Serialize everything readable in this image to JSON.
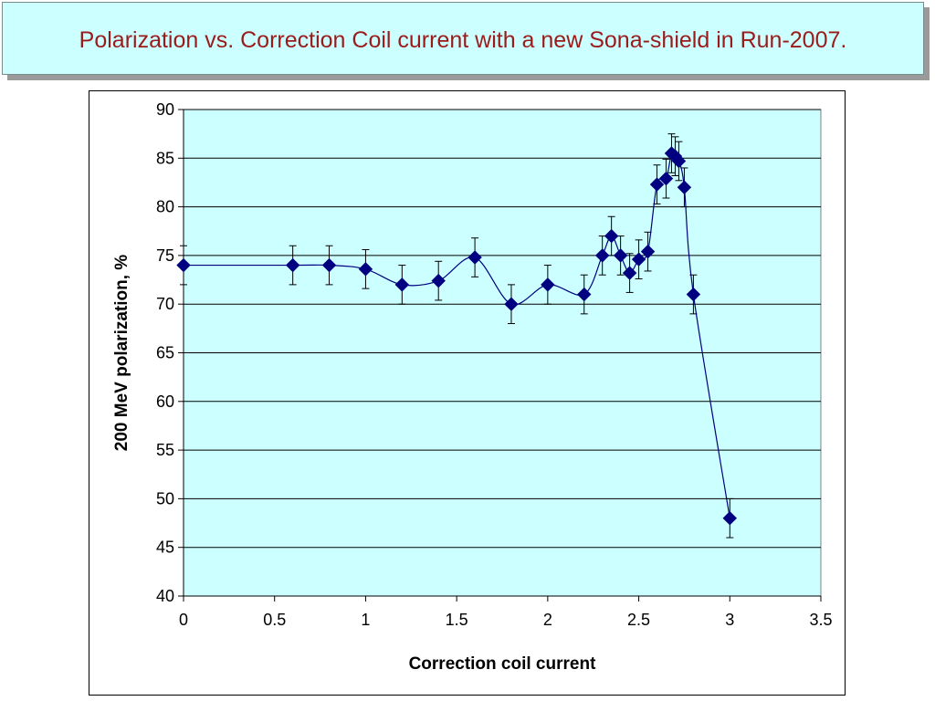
{
  "slide": {
    "title": "Polarization vs. Correction Coil current with a new Sona-shield in Run-2007."
  },
  "chart_data": {
    "type": "scatter",
    "title": "",
    "xlabel": "Correction coil current",
    "ylabel": "200 MeV polarization, %",
    "xlim": [
      0,
      3.5
    ],
    "ylim": [
      40,
      90
    ],
    "x_ticks": [
      "0",
      "0.5",
      "1",
      "1.5",
      "2",
      "2.5",
      "3",
      "3.5"
    ],
    "y_ticks": [
      "40",
      "45",
      "50",
      "55",
      "60",
      "65",
      "70",
      "75",
      "80",
      "85",
      "90"
    ],
    "grid": "horizontal",
    "plot_background": "#ccffff",
    "marker_color": "#000080",
    "line_color": "#000080",
    "series": [
      {
        "x": [
          0,
          0.6,
          0.8,
          1.0,
          1.2,
          1.4,
          1.6,
          1.8,
          2.0,
          2.2,
          2.3,
          2.35,
          2.4,
          2.45,
          2.5,
          2.55,
          2.6,
          2.65,
          2.68,
          2.7,
          2.72,
          2.75,
          2.8,
          3.0
        ],
        "y": [
          74,
          74,
          74,
          73.6,
          72,
          72.4,
          74.8,
          70,
          72,
          71,
          75,
          77,
          75,
          73.2,
          74.6,
          75.4,
          82.3,
          82.9,
          85.5,
          85.2,
          84.7,
          82,
          71,
          48
        ],
        "error": [
          2,
          2,
          2,
          2,
          2,
          2,
          2,
          2,
          2,
          2,
          2,
          2,
          2,
          2,
          2,
          2,
          2,
          2,
          2,
          2,
          2,
          2,
          2,
          2
        ]
      }
    ]
  }
}
